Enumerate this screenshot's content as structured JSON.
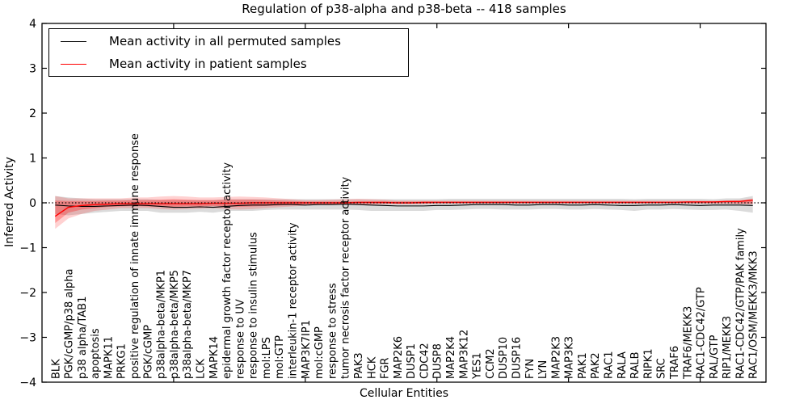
{
  "chart_data": {
    "type": "line",
    "title": "Regulation of p38-alpha and p38-beta -- 418 samples",
    "xlabel": "Cellular Entities",
    "ylabel": "Inferred Activity",
    "ylim": [
      -4,
      4
    ],
    "yticks": [
      -4,
      -3,
      -2,
      -1,
      0,
      1,
      2,
      3,
      4
    ],
    "xlim": [
      0,
      55
    ],
    "xticks": [
      10,
      20,
      30,
      40,
      50
    ],
    "grid": false,
    "background": "#ffffff",
    "legend_position": "upper left",
    "zero_line": {
      "y": 0,
      "style": "dotted",
      "color": "#000000"
    },
    "categories": [
      "BLK",
      "PGK/cGMP/p38 alpha",
      "p38 alpha/TAB1",
      "apoptosis",
      "MAPK11",
      "PRKG1",
      "positive regulation of innate immune response",
      "PGK/cGMP",
      "p38alpha-beta/MKP1",
      "p38alpha-beta/MKP5",
      "p38alpha-beta/MKP7",
      "LCK",
      "MAPK14",
      "epidermal growth factor receptor activity",
      "response to UV",
      "response to insulin stimulus",
      "mol:LPS",
      "mol:GTP",
      "interleukin-1 receptor activity",
      "MAP3K7IP1",
      "mol:cGMP",
      "response to stress",
      "tumor necrosis factor receptor activity",
      "PAK3",
      "HCK",
      "FGR",
      "MAP2K6",
      "DUSP1",
      "CDC42",
      "DUSP8",
      "MAP2K4",
      "MAP3K12",
      "YES1",
      "CCM2",
      "DUSP10",
      "DUSP16",
      "FYN",
      "LYN",
      "MAP2K3",
      "MAP3K3",
      "PAK1",
      "PAK2",
      "RAC1",
      "RALA",
      "RALB",
      "RIPK1",
      "SRC",
      "TRAF6",
      "TRAF6/MEKK3",
      "RAC1-CDC42/GTP",
      "RAL/GTP",
      "RIP1/MEKK3",
      "RAC1-CDC42/GTP/PAK family",
      "RAC1/OSM/MEKK3/MKK3"
    ],
    "series": [
      {
        "name": "Mean activity in all permuted samples",
        "color": "#000000",
        "values": [
          -0.05,
          -0.07,
          -0.08,
          -0.08,
          -0.07,
          -0.06,
          -0.05,
          -0.06,
          -0.08,
          -0.1,
          -0.1,
          -0.09,
          -0.1,
          -0.08,
          -0.06,
          -0.05,
          -0.05,
          -0.04,
          -0.04,
          -0.05,
          -0.04,
          -0.04,
          -0.03,
          -0.04,
          -0.05,
          -0.06,
          -0.07,
          -0.07,
          -0.07,
          -0.06,
          -0.06,
          -0.05,
          -0.04,
          -0.04,
          -0.04,
          -0.05,
          -0.05,
          -0.04,
          -0.04,
          -0.05,
          -0.05,
          -0.04,
          -0.05,
          -0.06,
          -0.06,
          -0.05,
          -0.05,
          -0.04,
          -0.05,
          -0.06,
          -0.05,
          -0.05,
          -0.05,
          -0.06
        ]
      },
      {
        "name": "Mean activity in patient samples",
        "color": "#ff0000",
        "values": [
          -0.3,
          -0.1,
          -0.06,
          -0.04,
          -0.03,
          -0.02,
          -0.02,
          -0.02,
          -0.02,
          -0.02,
          -0.02,
          -0.02,
          -0.01,
          -0.01,
          -0.01,
          0.0,
          0.0,
          0.0,
          0.0,
          0.0,
          0.0,
          0.0,
          0.0,
          0.01,
          0.01,
          0.01,
          0.0,
          0.0,
          0.01,
          0.01,
          0.01,
          0.01,
          0.01,
          0.01,
          0.01,
          0.01,
          0.01,
          0.01,
          0.01,
          0.01,
          0.01,
          0.01,
          0.01,
          0.01,
          0.01,
          0.01,
          0.01,
          0.01,
          0.02,
          0.02,
          0.02,
          0.03,
          0.03,
          0.06
        ]
      }
    ],
    "bands": [
      {
        "name": "permuted-spread",
        "color": "#999999",
        "opacity": 0.35,
        "upper": [
          0.15,
          0.12,
          0.1,
          0.08,
          0.08,
          0.08,
          0.08,
          0.08,
          0.06,
          0.06,
          0.06,
          0.06,
          0.06,
          0.08,
          0.08,
          0.08,
          0.08,
          0.08,
          0.08,
          0.08,
          0.08,
          0.08,
          0.08,
          0.08,
          0.08,
          0.08,
          0.08,
          0.08,
          0.08,
          0.08,
          0.09,
          0.09,
          0.09,
          0.09,
          0.09,
          0.09,
          0.09,
          0.09,
          0.09,
          0.09,
          0.09,
          0.09,
          0.09,
          0.09,
          0.08,
          0.09,
          0.09,
          0.09,
          0.09,
          0.09,
          0.08,
          0.1,
          0.1,
          0.15
        ],
        "lower": [
          -0.25,
          -0.28,
          -0.25,
          -0.22,
          -0.2,
          -0.18,
          -0.18,
          -0.18,
          -0.22,
          -0.22,
          -0.22,
          -0.2,
          -0.22,
          -0.18,
          -0.18,
          -0.18,
          -0.16,
          -0.15,
          -0.15,
          -0.15,
          -0.15,
          -0.15,
          -0.15,
          -0.16,
          -0.18,
          -0.18,
          -0.18,
          -0.18,
          -0.18,
          -0.16,
          -0.16,
          -0.15,
          -0.14,
          -0.14,
          -0.15,
          -0.15,
          -0.15,
          -0.14,
          -0.14,
          -0.15,
          -0.15,
          -0.14,
          -0.15,
          -0.16,
          -0.18,
          -0.15,
          -0.15,
          -0.14,
          -0.15,
          -0.16,
          -0.16,
          -0.15,
          -0.18,
          -0.22
        ]
      },
      {
        "name": "patient-spread-outer",
        "color": "#ff0000",
        "opacity": 0.18,
        "upper": [
          0.15,
          0.1,
          0.1,
          0.1,
          0.1,
          0.1,
          0.12,
          0.12,
          0.14,
          0.15,
          0.14,
          0.12,
          0.12,
          0.13,
          0.14,
          0.13,
          0.12,
          0.1,
          0.08,
          0.06,
          0.06,
          0.07,
          0.08,
          0.09,
          0.08,
          0.07,
          0.05,
          0.05,
          0.05,
          0.05,
          0.05,
          0.05,
          0.05,
          0.05,
          0.05,
          0.05,
          0.05,
          0.05,
          0.05,
          0.05,
          0.05,
          0.05,
          0.05,
          0.05,
          0.05,
          0.05,
          0.05,
          0.05,
          0.05,
          0.05,
          0.05,
          0.05,
          0.06,
          0.1
        ],
        "lower": [
          -0.58,
          -0.35,
          -0.25,
          -0.18,
          -0.15,
          -0.12,
          -0.12,
          -0.12,
          -0.14,
          -0.15,
          -0.14,
          -0.13,
          -0.12,
          -0.14,
          -0.15,
          -0.14,
          -0.12,
          -0.1,
          -0.08,
          -0.06,
          -0.05,
          -0.05,
          -0.04,
          -0.04,
          -0.04,
          -0.03,
          -0.03,
          -0.03,
          -0.03,
          -0.02,
          -0.02,
          -0.02,
          -0.02,
          -0.02,
          -0.02,
          -0.02,
          -0.02,
          -0.02,
          -0.02,
          -0.02,
          -0.02,
          -0.02,
          -0.02,
          -0.02,
          -0.02,
          -0.02,
          -0.02,
          -0.02,
          -0.02,
          -0.02,
          -0.02,
          -0.02,
          -0.02,
          -0.03
        ]
      },
      {
        "name": "patient-spread-inner",
        "color": "#ff0000",
        "opacity": 0.28,
        "upper": [
          0.05,
          0.04,
          0.04,
          0.04,
          0.05,
          0.05,
          0.06,
          0.06,
          0.07,
          0.08,
          0.07,
          0.06,
          0.06,
          0.07,
          0.07,
          0.07,
          0.06,
          0.05,
          0.04,
          0.03,
          0.03,
          0.03,
          0.03,
          0.03,
          0.03,
          0.03,
          0.03,
          0.03,
          0.03,
          0.03,
          0.03,
          0.03,
          0.03,
          0.03,
          0.03,
          0.03,
          0.03,
          0.03,
          0.03,
          0.03,
          0.03,
          0.03,
          0.03,
          0.03,
          0.03,
          0.03,
          0.03,
          0.03,
          0.03,
          0.03,
          0.03,
          0.04,
          0.04,
          0.05
        ],
        "lower": [
          -0.45,
          -0.22,
          -0.15,
          -0.12,
          -0.09,
          -0.08,
          -0.07,
          -0.08,
          -0.09,
          -0.09,
          -0.08,
          -0.08,
          -0.07,
          -0.08,
          -0.09,
          -0.08,
          -0.07,
          -0.06,
          -0.04,
          -0.03,
          -0.02,
          -0.02,
          -0.02,
          -0.02,
          -0.02,
          -0.02,
          -0.02,
          -0.02,
          -0.02,
          -0.01,
          -0.01,
          -0.01,
          -0.01,
          -0.01,
          -0.01,
          -0.01,
          -0.01,
          -0.01,
          -0.01,
          -0.01,
          -0.01,
          -0.01,
          -0.01,
          -0.01,
          -0.01,
          -0.01,
          -0.01,
          -0.01,
          -0.01,
          -0.01,
          -0.01,
          -0.01,
          -0.02,
          -0.02
        ]
      }
    ]
  }
}
